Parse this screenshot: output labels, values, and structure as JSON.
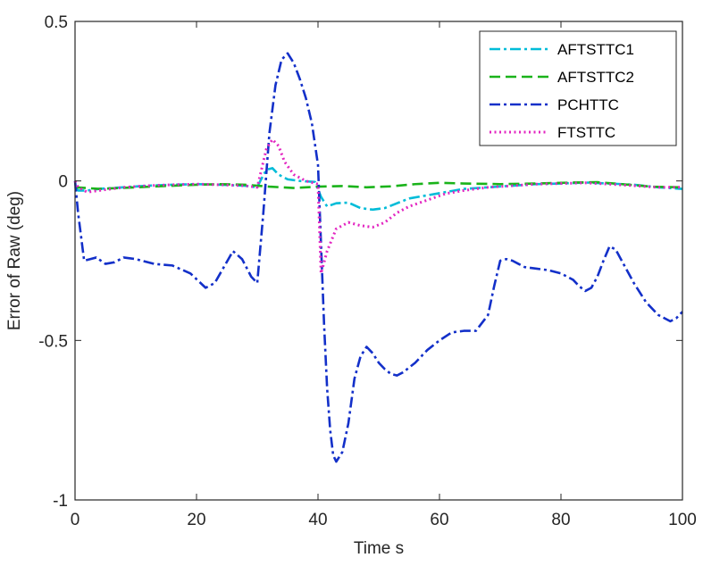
{
  "chart_data": {
    "type": "line",
    "title": "",
    "xlabel": "Time s",
    "ylabel": "Error of Raw (deg)",
    "xlim": [
      0,
      100
    ],
    "ylim": [
      -1,
      0.5
    ],
    "xticks": [
      0,
      20,
      40,
      60,
      80,
      100
    ],
    "xtick_labels": [
      "0",
      "20",
      "40",
      "60",
      "80",
      "100"
    ],
    "yticks": [
      -1,
      -0.5,
      0,
      0.5
    ],
    "ytick_labels": [
      "-1",
      "-0.5",
      "0",
      "0.5"
    ],
    "grid": false,
    "legend_position": "top-right",
    "series": [
      {
        "name": "AFTSTTC1",
        "color": "#00bcd8",
        "dash": "dash-dot",
        "x": [
          0,
          0.5,
          2,
          4,
          8,
          12,
          16,
          20,
          24,
          28,
          30,
          30.5,
          31.5,
          32.5,
          33.5,
          35,
          37,
          39.5,
          40.5,
          41.5,
          43,
          45,
          47,
          49,
          51,
          53,
          55,
          58,
          61,
          64,
          68,
          72,
          76,
          80,
          84,
          88,
          92,
          96,
          100
        ],
        "y": [
          -0.02,
          -0.03,
          -0.03,
          -0.025,
          -0.02,
          -0.015,
          -0.012,
          -0.01,
          -0.012,
          -0.015,
          -0.02,
          0.0,
          0.035,
          0.04,
          0.02,
          0.005,
          0.0,
          -0.003,
          -0.05,
          -0.08,
          -0.07,
          -0.068,
          -0.085,
          -0.09,
          -0.085,
          -0.07,
          -0.055,
          -0.045,
          -0.035,
          -0.025,
          -0.02,
          -0.015,
          -0.01,
          -0.008,
          -0.005,
          -0.008,
          -0.012,
          -0.02,
          -0.025
        ]
      },
      {
        "name": "AFTSTTC2",
        "color": "#1ab31a",
        "dash": "dashed",
        "x": [
          0,
          4,
          10,
          16,
          20,
          24,
          28,
          32,
          36,
          40,
          44,
          48,
          52,
          56,
          60,
          64,
          70,
          76,
          82,
          86,
          90,
          95,
          100
        ],
        "y": [
          -0.02,
          -0.025,
          -0.02,
          -0.015,
          -0.012,
          -0.01,
          -0.012,
          -0.018,
          -0.022,
          -0.018,
          -0.016,
          -0.02,
          -0.017,
          -0.01,
          -0.006,
          -0.008,
          -0.01,
          -0.008,
          -0.005,
          -0.004,
          -0.01,
          -0.018,
          -0.02
        ]
      },
      {
        "name": "PCHTTC",
        "color": "#1330c9",
        "dash": "dash-dot",
        "x": [
          0,
          0.5,
          1.5,
          2.5,
          3.5,
          5,
          6.5,
          8,
          10,
          13,
          16,
          19,
          21.5,
          23,
          24.5,
          26,
          27.5,
          29,
          30,
          31,
          32,
          33,
          34,
          35,
          36,
          37,
          38,
          39,
          40,
          40.5,
          41,
          41.5,
          42,
          42.5,
          43,
          44,
          45,
          46,
          47,
          48,
          49,
          50,
          51,
          52,
          53,
          54,
          56,
          58,
          60,
          62,
          64,
          66,
          68,
          69,
          70,
          71,
          72,
          73,
          74,
          76,
          78,
          80,
          82,
          83,
          84,
          85,
          86,
          87,
          88,
          89,
          90,
          92,
          94,
          96,
          98,
          99,
          100
        ],
        "y": [
          0.0,
          -0.1,
          -0.25,
          -0.245,
          -0.24,
          -0.26,
          -0.255,
          -0.24,
          -0.245,
          -0.26,
          -0.265,
          -0.29,
          -0.335,
          -0.32,
          -0.27,
          -0.22,
          -0.245,
          -0.3,
          -0.32,
          -0.1,
          0.15,
          0.3,
          0.38,
          0.4,
          0.37,
          0.32,
          0.26,
          0.18,
          0.05,
          -0.2,
          -0.45,
          -0.65,
          -0.78,
          -0.86,
          -0.88,
          -0.85,
          -0.76,
          -0.62,
          -0.55,
          -0.52,
          -0.54,
          -0.57,
          -0.59,
          -0.605,
          -0.61,
          -0.6,
          -0.57,
          -0.53,
          -0.5,
          -0.475,
          -0.47,
          -0.47,
          -0.42,
          -0.33,
          -0.25,
          -0.245,
          -0.25,
          -0.26,
          -0.27,
          -0.275,
          -0.28,
          -0.29,
          -0.31,
          -0.33,
          -0.345,
          -0.335,
          -0.3,
          -0.25,
          -0.205,
          -0.215,
          -0.25,
          -0.32,
          -0.38,
          -0.42,
          -0.44,
          -0.43,
          -0.41
        ]
      },
      {
        "name": "FTSTTC",
        "color": "#e326c1",
        "dash": "dotted",
        "x": [
          0,
          0.5,
          2,
          4,
          8,
          12,
          16,
          20,
          24,
          28,
          30,
          30.5,
          31.5,
          32.5,
          33.5,
          34.5,
          36,
          38,
          40,
          40.5,
          41.5,
          43,
          45,
          47,
          49,
          51,
          53,
          55,
          58,
          61,
          64,
          68,
          72,
          76,
          80,
          84,
          88,
          92,
          96,
          100
        ],
        "y": [
          0.0,
          -0.02,
          -0.035,
          -0.03,
          -0.02,
          -0.015,
          -0.012,
          -0.01,
          -0.012,
          -0.015,
          -0.02,
          0.02,
          0.1,
          0.13,
          0.11,
          0.06,
          0.02,
          0.0,
          -0.01,
          -0.29,
          -0.22,
          -0.15,
          -0.13,
          -0.14,
          -0.145,
          -0.13,
          -0.1,
          -0.08,
          -0.06,
          -0.04,
          -0.03,
          -0.02,
          -0.015,
          -0.01,
          -0.008,
          -0.006,
          -0.01,
          -0.015,
          -0.02,
          -0.02
        ]
      }
    ]
  }
}
